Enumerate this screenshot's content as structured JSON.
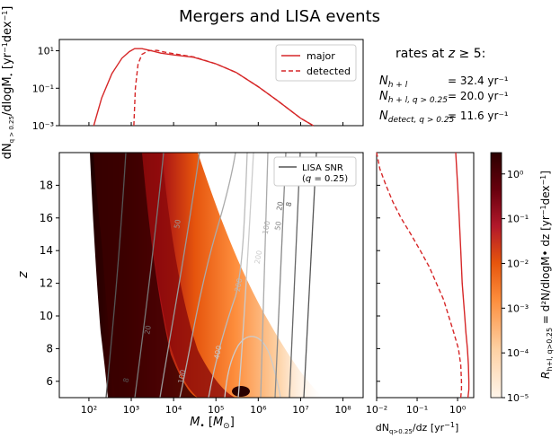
{
  "title": "Mergers and LISA events",
  "rates": {
    "heading": "rates at z ≥ 5:",
    "rows": [
      {
        "label": "N_{h+l}",
        "value": "= 32.4 yr⁻¹"
      },
      {
        "label": "N_{h+l, q>0.25}",
        "value": "= 20.0 yr⁻¹"
      },
      {
        "label": "N_{detect, q>0.25}",
        "value": "= 11.6 yr⁻¹"
      }
    ]
  },
  "colors": {
    "major": "#d62728",
    "detected": "#d62728",
    "snr": "#555555"
  },
  "chart_data": [
    {
      "panel": "top",
      "type": "line",
      "ylabel": "dN_{q>0.25}/dlogM• [yr⁻¹dex⁻¹]",
      "yscale": "log",
      "xscale": "log",
      "xlim": [
        20,
        300000000
      ],
      "ylim": [
        0.001,
        40
      ],
      "yticks": [
        {
          "v": 10,
          "label": "10¹"
        },
        {
          "v": 0.1,
          "label": "10⁻¹"
        },
        {
          "v": 0.001,
          "label": "10⁻³"
        }
      ],
      "legend": {
        "position": "top-right",
        "entries": [
          "major",
          "detected"
        ]
      },
      "series": [
        {
          "name": "major",
          "style": "solid",
          "x": [
            130,
            200,
            350,
            600,
            900,
            1200,
            1800,
            3000,
            5000,
            10000,
            30000,
            100000,
            300000,
            1000000,
            3000000,
            10000000,
            20000000
          ],
          "y": [
            0.001,
            0.03,
            0.6,
            4,
            9,
            13,
            13,
            10,
            7.5,
            6,
            4.5,
            2,
            0.7,
            0.12,
            0.02,
            0.0025,
            0.001
          ]
        },
        {
          "name": "detected",
          "style": "dashed",
          "x": [
            1150,
            1250,
            1450,
            1800,
            2500,
            4000,
            7000,
            12000,
            30000,
            100000,
            300000,
            1000000,
            3000000,
            10000000,
            20000000
          ],
          "y": [
            0.001,
            0.1,
            2,
            6.5,
            10,
            10.5,
            8,
            6.5,
            4.7,
            2,
            0.7,
            0.12,
            0.02,
            0.0025,
            0.001
          ]
        }
      ]
    },
    {
      "panel": "main",
      "type": "heatmap",
      "xlabel": "M• [M⊙]",
      "ylabel": "z",
      "xscale": "log",
      "xlim": [
        20,
        300000000
      ],
      "ylim": [
        5,
        20
      ],
      "xticks": [
        {
          "v": 100,
          "label": "10²"
        },
        {
          "v": 1000,
          "label": "10³"
        },
        {
          "v": 10000,
          "label": "10⁴"
        },
        {
          "v": 100000,
          "label": "10⁵"
        },
        {
          "v": 1000000,
          "label": "10⁶"
        },
        {
          "v": 10000000,
          "label": "10⁷"
        },
        {
          "v": 100000000,
          "label": "10⁸"
        }
      ],
      "yticks": [
        6,
        8,
        10,
        12,
        14,
        16,
        18
      ],
      "legend": {
        "position": "top-right",
        "entries": [
          "LISA SNR (q = 0.25)"
        ]
      },
      "snr_contour_labels": [
        "8",
        "20",
        "50",
        "100",
        "200",
        "400",
        "400",
        "200",
        "100",
        "50",
        "20",
        "8"
      ]
    },
    {
      "panel": "right",
      "type": "line",
      "xlabel": "dN_{q>0.25}/dz [yr⁻¹]",
      "xscale": "log",
      "xlim": [
        0.01,
        2.5
      ],
      "ylim": [
        5,
        20
      ],
      "xticks": [
        {
          "v": 0.01,
          "label": "10⁻²"
        },
        {
          "v": 0.1,
          "label": "10⁻¹"
        },
        {
          "v": 1,
          "label": "10⁰"
        }
      ],
      "series": [
        {
          "name": "major",
          "style": "solid",
          "z": [
            5,
            5.5,
            6,
            7,
            8,
            9,
            10,
            12,
            14,
            16,
            18,
            20
          ],
          "x": [
            1.8,
            1.9,
            1.9,
            1.85,
            1.75,
            1.6,
            1.5,
            1.3,
            1.2,
            1.1,
            1.0,
            0.9
          ]
        },
        {
          "name": "detected",
          "style": "dashed",
          "z": [
            5,
            5.5,
            6,
            7,
            8,
            9,
            10,
            11,
            12,
            13,
            14,
            15,
            16,
            17,
            18,
            19,
            20
          ],
          "x": [
            1.2,
            1.25,
            1.25,
            1.2,
            1.05,
            0.8,
            0.6,
            0.45,
            0.3,
            0.2,
            0.12,
            0.07,
            0.04,
            0.025,
            0.017,
            0.012,
            0.008
          ]
        }
      ]
    },
    {
      "panel": "colorbar",
      "type": "heatmap",
      "label": "R_{h+l, q>0.25} = d²N_{h+l, q>0.25}/dlogM• dz [yr⁻¹dex⁻¹]",
      "yscale": "log",
      "ylim": [
        1e-05,
        3
      ],
      "ticks": [
        {
          "v": 1,
          "label": "10⁰"
        },
        {
          "v": 0.1,
          "label": "10⁻¹"
        },
        {
          "v": 0.01,
          "label": "10⁻²"
        },
        {
          "v": 0.001,
          "label": "10⁻³"
        },
        {
          "v": 0.0001,
          "label": "10⁻⁴"
        },
        {
          "v": 1e-05,
          "label": "10⁻⁵"
        }
      ]
    }
  ]
}
